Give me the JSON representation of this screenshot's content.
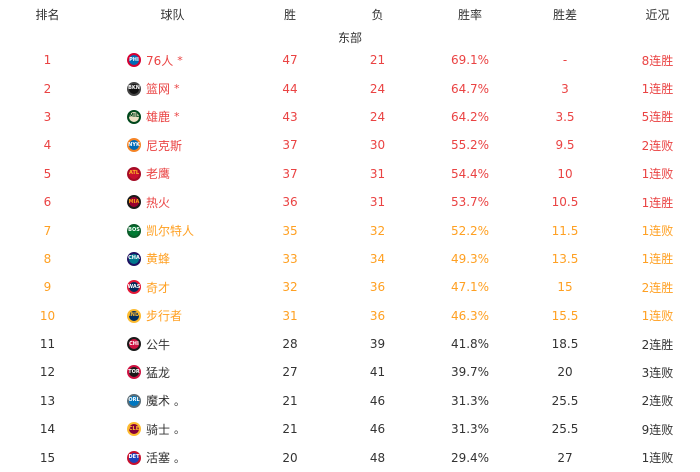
{
  "header": {
    "columns": [
      "排名",
      "球队",
      "胜",
      "负",
      "胜率",
      "胜差",
      "近况"
    ]
  },
  "division_label": "东部",
  "colors": {
    "red": "#ea4343",
    "orange": "#ffa022",
    "black": "#333333",
    "header_text": "#333333",
    "background": "#ffffff"
  },
  "legend": {
    "clinched_marker": "*",
    "eliminated_marker": "。"
  },
  "rows": [
    {
      "rank": "1",
      "logo": "sixers-logo",
      "abbr": "PHI",
      "team": "76人",
      "suffix": "*",
      "wins": "47",
      "losses": "21",
      "pct": "69.1%",
      "gb": "-",
      "streak": "8连胜",
      "tier": "red",
      "logo_bg": "#006bb6",
      "logo_border": "#d50032",
      "logo_fg": "#ffffff"
    },
    {
      "rank": "2",
      "logo": "nets-logo",
      "abbr": "BKN",
      "team": "篮网",
      "suffix": "*",
      "wins": "44",
      "losses": "24",
      "pct": "64.7%",
      "gb": "3",
      "streak": "1连胜",
      "tier": "red",
      "logo_bg": "#111111",
      "logo_border": "#444444",
      "logo_fg": "#ffffff"
    },
    {
      "rank": "3",
      "logo": "bucks-logo",
      "abbr": "MIL",
      "team": "雄鹿",
      "suffix": "*",
      "wins": "43",
      "losses": "24",
      "pct": "64.2%",
      "gb": "3.5",
      "streak": "5连胜",
      "tier": "red",
      "logo_bg": "#eee1c6",
      "logo_border": "#00471b",
      "logo_fg": "#00471b"
    },
    {
      "rank": "4",
      "logo": "knicks-logo",
      "abbr": "NYK",
      "team": "尼克斯",
      "suffix": "",
      "wins": "37",
      "losses": "30",
      "pct": "55.2%",
      "gb": "9.5",
      "streak": "2连败",
      "tier": "red",
      "logo_bg": "#006bb6",
      "logo_border": "#f58426",
      "logo_fg": "#ffffff"
    },
    {
      "rank": "5",
      "logo": "hawks-logo",
      "abbr": "ATL",
      "team": "老鹰",
      "suffix": "",
      "wins": "37",
      "losses": "31",
      "pct": "54.4%",
      "gb": "10",
      "streak": "1连败",
      "tier": "red",
      "logo_bg": "#c8102e",
      "logo_border": "#a50c26",
      "logo_fg": "#fdb927"
    },
    {
      "rank": "6",
      "logo": "heat-logo",
      "abbr": "MIA",
      "team": "热火",
      "suffix": "",
      "wins": "36",
      "losses": "31",
      "pct": "53.7%",
      "gb": "10.5",
      "streak": "1连胜",
      "tier": "red",
      "logo_bg": "#98002e",
      "logo_border": "#1a1a1a",
      "logo_fg": "#f9a01b"
    },
    {
      "rank": "7",
      "logo": "celtics-logo",
      "abbr": "BOS",
      "team": "凯尔特人",
      "suffix": "",
      "wins": "35",
      "losses": "32",
      "pct": "52.2%",
      "gb": "11.5",
      "streak": "1连败",
      "tier": "orange",
      "logo_bg": "#007a33",
      "logo_border": "#0b5c2a",
      "logo_fg": "#ffffff"
    },
    {
      "rank": "8",
      "logo": "hornets-logo",
      "abbr": "CHA",
      "team": "黄蜂",
      "suffix": "",
      "wins": "33",
      "losses": "34",
      "pct": "49.3%",
      "gb": "13.5",
      "streak": "1连胜",
      "tier": "orange",
      "logo_bg": "#00788c",
      "logo_border": "#1d1160",
      "logo_fg": "#ffffff"
    },
    {
      "rank": "9",
      "logo": "wizards-logo",
      "abbr": "WAS",
      "team": "奇才",
      "suffix": "",
      "wins": "32",
      "losses": "36",
      "pct": "47.1%",
      "gb": "15",
      "streak": "2连胜",
      "tier": "orange",
      "logo_bg": "#002b5c",
      "logo_border": "#e31837",
      "logo_fg": "#ffffff"
    },
    {
      "rank": "10",
      "logo": "pacers-logo",
      "abbr": "IND",
      "team": "步行者",
      "suffix": "",
      "wins": "31",
      "losses": "36",
      "pct": "46.3%",
      "gb": "15.5",
      "streak": "1连败",
      "tier": "orange",
      "logo_bg": "#002d62",
      "logo_border": "#fdbb30",
      "logo_fg": "#fdbb30"
    },
    {
      "rank": "11",
      "logo": "bulls-logo",
      "abbr": "CHI",
      "team": "公牛",
      "suffix": "",
      "wins": "28",
      "losses": "39",
      "pct": "41.8%",
      "gb": "18.5",
      "streak": "2连胜",
      "tier": "black",
      "logo_bg": "#ce1141",
      "logo_border": "#1a1a1a",
      "logo_fg": "#ffffff"
    },
    {
      "rank": "12",
      "logo": "raptors-logo",
      "abbr": "TOR",
      "team": "猛龙",
      "suffix": "",
      "wins": "27",
      "losses": "41",
      "pct": "39.7%",
      "gb": "20",
      "streak": "3连败",
      "tier": "black",
      "logo_bg": "#1a1a1a",
      "logo_border": "#ce1141",
      "logo_fg": "#ffffff"
    },
    {
      "rank": "13",
      "logo": "magic-logo",
      "abbr": "ORL",
      "team": "魔术",
      "suffix": "。",
      "wins": "21",
      "losses": "46",
      "pct": "31.3%",
      "gb": "25.5",
      "streak": "2连败",
      "tier": "black",
      "logo_bg": "#0077c0",
      "logo_border": "#5a6d77",
      "logo_fg": "#ffffff"
    },
    {
      "rank": "14",
      "logo": "cavaliers-logo",
      "abbr": "CLE",
      "team": "骑士",
      "suffix": "。",
      "wins": "21",
      "losses": "46",
      "pct": "31.3%",
      "gb": "25.5",
      "streak": "9连败",
      "tier": "black",
      "logo_bg": "#860038",
      "logo_border": "#fdbb30",
      "logo_fg": "#fdbb30"
    },
    {
      "rank": "15",
      "logo": "pistons-logo",
      "abbr": "DET",
      "team": "活塞",
      "suffix": "。",
      "wins": "20",
      "losses": "48",
      "pct": "29.4%",
      "gb": "27",
      "streak": "1连败",
      "tier": "black",
      "logo_bg": "#1d42ba",
      "logo_border": "#c8102e",
      "logo_fg": "#ffffff"
    }
  ]
}
